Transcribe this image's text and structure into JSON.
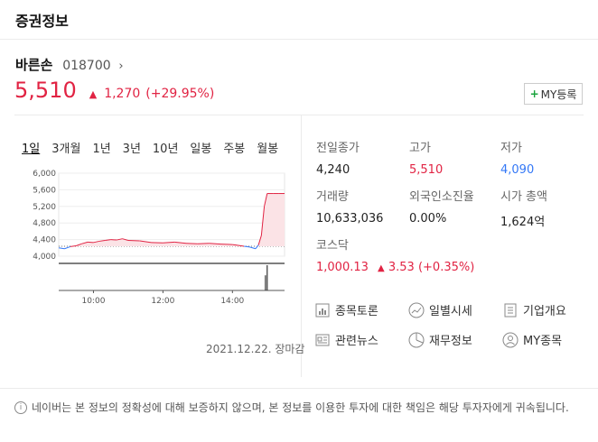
{
  "header": {
    "title": "증권정보"
  },
  "stock": {
    "name": "바른손",
    "code": "018700",
    "price": "5,510",
    "change": "1,270",
    "change_pct": "(+29.95%)",
    "my_button": "MY등록",
    "up_color": "#e12343",
    "down_color": "#3478f6"
  },
  "period_tabs": [
    "1일",
    "3개월",
    "1년",
    "3년",
    "10년",
    "일봉",
    "주봉",
    "월봉"
  ],
  "chart_data": {
    "type": "line",
    "title": "",
    "y_ticks": [
      "6,000",
      "5,600",
      "5,200",
      "4,800",
      "4,400",
      "4,000"
    ],
    "ylim": [
      4000,
      6000
    ],
    "x_ticks": [
      "10:00",
      "12:00",
      "14:00"
    ],
    "baseline": 4240,
    "series": [
      {
        "name": "",
        "times": [
          "09:00",
          "09:10",
          "09:20",
          "09:30",
          "09:40",
          "09:50",
          "10:00",
          "10:10",
          "10:20",
          "10:30",
          "10:40",
          "10:50",
          "11:00",
          "11:20",
          "11:40",
          "12:00",
          "12:20",
          "12:40",
          "13:00",
          "13:20",
          "13:40",
          "14:00",
          "14:10",
          "14:20",
          "14:30",
          "14:40",
          "14:45",
          "14:50",
          "14:55",
          "15:00",
          "15:10",
          "15:20",
          "15:30"
        ],
        "values": [
          4200,
          4180,
          4230,
          4250,
          4300,
          4340,
          4330,
          4360,
          4380,
          4400,
          4390,
          4420,
          4380,
          4370,
          4330,
          4320,
          4340,
          4310,
          4300,
          4310,
          4290,
          4280,
          4260,
          4240,
          4220,
          4180,
          4270,
          4500,
          5200,
          5510,
          5510,
          5510,
          5510
        ]
      }
    ],
    "volume_spikes": [
      {
        "time": "14:57",
        "level": 0.6
      },
      {
        "time": "15:00",
        "level": 1.0
      }
    ],
    "date_label": "2021.12.22. 장마감"
  },
  "stats": {
    "prev_close_label": "전일종가",
    "prev_close": "4,240",
    "high_label": "고가",
    "high": "5,510",
    "low_label": "저가",
    "low": "4,090",
    "volume_label": "거래량",
    "volume": "10,633,036",
    "foreign_label": "외국인소진율",
    "foreign": "0.00%",
    "mcap_label": "시가 총액",
    "mcap": "1,624억",
    "index_label": "코스닥",
    "index_value": "1,000.13",
    "index_change": "3.53",
    "index_pct": "(+0.35%)"
  },
  "links": {
    "discussion": "종목토론",
    "daily": "일별시세",
    "company": "기업개요",
    "news": "관련뉴스",
    "finance": "재무정보",
    "my": "MY종목"
  },
  "notice": "네이버는 본 정보의 정확성에 대해 보증하지 않으며, 본 정보를 이용한 투자에 대한 책임은 해당 투자자에게 귀속됩니다."
}
